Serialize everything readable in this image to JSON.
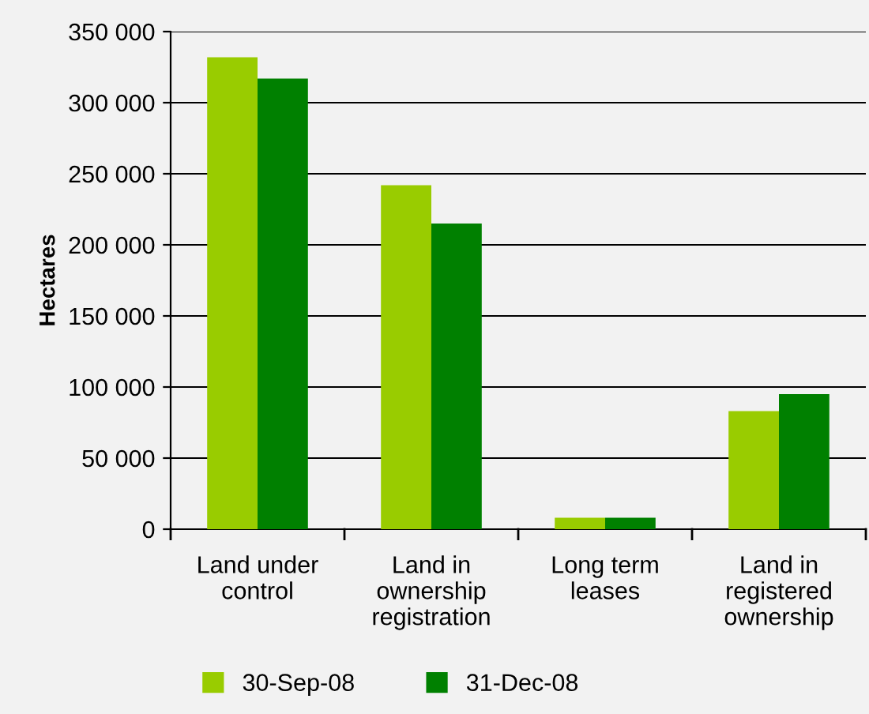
{
  "chart_data": {
    "type": "bar",
    "ylabel": "Hectares",
    "categories": [
      "Land under\ncontrol",
      "Land in\nownership\nregistration",
      "Long term\nleases",
      "Land in\nregistered\nownership"
    ],
    "series": [
      {
        "name": "30-Sep-08",
        "color": "#99cc00",
        "values": [
          332000,
          242000,
          8000,
          83000
        ]
      },
      {
        "name": "31-Dec-08",
        "color": "#008000",
        "values": [
          317000,
          215000,
          8000,
          95000
        ]
      }
    ],
    "ylim": [
      0,
      350000
    ],
    "yticks": [
      {
        "value": 0,
        "label": "0"
      },
      {
        "value": 50000,
        "label": "50 000"
      },
      {
        "value": 100000,
        "label": "100 000"
      },
      {
        "value": 150000,
        "label": "150 000"
      },
      {
        "value": 200000,
        "label": "200 000"
      },
      {
        "value": 250000,
        "label": "250 000"
      },
      {
        "value": 300000,
        "label": "300 000"
      },
      {
        "value": 350000,
        "label": "350 000"
      }
    ],
    "grid": "y",
    "legend": "bottom"
  }
}
